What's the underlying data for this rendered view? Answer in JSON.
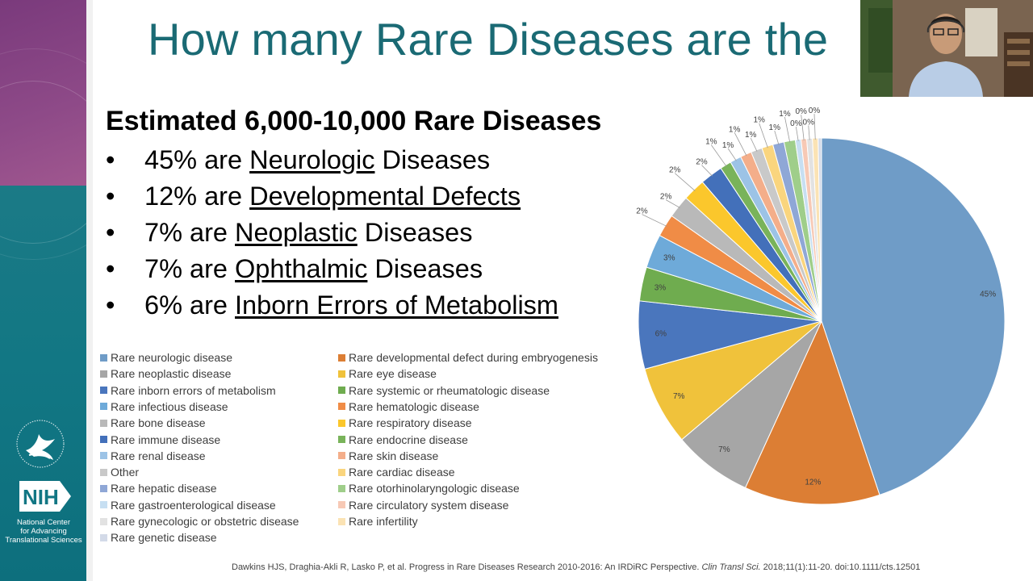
{
  "slide": {
    "title": "How many Rare Diseases are the",
    "headline": "Estimated 6,000-10,000 Rare Diseases",
    "bullets": [
      {
        "marker": "•",
        "pre": "45% are ",
        "link": "Neurologic",
        "post": " Diseases"
      },
      {
        "marker": "•",
        "pre": "12% are ",
        "link": "Developmental Defects",
        "post": ""
      },
      {
        "marker": "•",
        "pre": "7% are ",
        "link": "Neoplastic",
        "post": " Diseases"
      },
      {
        "marker": "•",
        "pre": "7% are ",
        "link": "Ophthalmic",
        "post": " Diseases"
      },
      {
        "marker": "•",
        "pre": "6% are ",
        "link": "Inborn Errors of Metabolism",
        "post": ""
      }
    ],
    "citation": {
      "authors": "Dawkins HJS, Draghia-Akli R, Lasko P, et al. Progress in Rare Diseases Research 2010-2016: An IRDiRC Perspective.",
      "journal": "Clin Transl Sci.",
      "details": "2018;11(1):11-20. doi:10.1111/cts.12501"
    },
    "logos": {
      "hhs": "hhs-eagle-seal-icon",
      "nih": "NIH",
      "nih_caption_1": "National Center",
      "nih_caption_2": "for Advancing",
      "nih_caption_3": "Translational Sciences"
    },
    "colors": {
      "title": "#1a6a74",
      "sidebar_top": "#7a3a7c",
      "sidebar_bottom": "#127784"
    }
  },
  "chart_data": {
    "type": "pie",
    "title": "",
    "start_angle": 0,
    "direction": "clockwise",
    "slices": [
      {
        "label": "Rare neurologic disease",
        "value": 45,
        "color": "#6f9cc7",
        "data_label": "45%"
      },
      {
        "label": "Rare developmental defect during embryogenesis",
        "value": 12,
        "color": "#dc7e34",
        "data_label": "12%"
      },
      {
        "label": "Rare neoplastic disease",
        "value": 7,
        "color": "#a6a6a6",
        "data_label": "7%"
      },
      {
        "label": "Rare eye disease",
        "value": 7,
        "color": "#f0c23b",
        "data_label": "7%"
      },
      {
        "label": "Rare inborn errors of metabolism",
        "value": 6,
        "color": "#4a76bd",
        "data_label": "6%"
      },
      {
        "label": "Rare systemic or rheumatologic disease",
        "value": 3,
        "color": "#6fac4f",
        "data_label": "3%"
      },
      {
        "label": "Rare infectious disease",
        "value": 3,
        "color": "#6eaad9",
        "data_label": "3%"
      },
      {
        "label": "Rare hematologic disease",
        "value": 2,
        "color": "#f08c46",
        "data_label": "2%"
      },
      {
        "label": "Rare bone disease",
        "value": 2,
        "color": "#b9b9b9",
        "data_label": "2%"
      },
      {
        "label": "Rare respiratory disease",
        "value": 2,
        "color": "#fbc72c",
        "data_label": "2%"
      },
      {
        "label": "Rare immune disease",
        "value": 2,
        "color": "#4370ba",
        "data_label": "2%"
      },
      {
        "label": "Rare endocrine disease",
        "value": 1,
        "color": "#79b35a",
        "data_label": "1%"
      },
      {
        "label": "Rare renal disease",
        "value": 1,
        "color": "#9cc3e6",
        "data_label": "1%"
      },
      {
        "label": "Rare skin disease",
        "value": 1,
        "color": "#f4ae8a",
        "data_label": "1%"
      },
      {
        "label": "Other",
        "value": 1,
        "color": "#c9c9c9",
        "data_label": "1%"
      },
      {
        "label": "Rare cardiac disease",
        "value": 1,
        "color": "#fad57e",
        "data_label": "1%"
      },
      {
        "label": "Rare hepatic disease",
        "value": 1,
        "color": "#8fa7d6",
        "data_label": "1%"
      },
      {
        "label": "Rare otorhinolaryngologic disease",
        "value": 1,
        "color": "#9fce8a",
        "data_label": "1%"
      },
      {
        "label": "Rare gastroenterological disease",
        "value": 0.5,
        "color": "#c7dff2",
        "data_label": "0%"
      },
      {
        "label": "Rare circulatory system disease",
        "value": 0.5,
        "color": "#f7c9b5",
        "data_label": "0%"
      },
      {
        "label": "Rare gynecologic or obstetric disease",
        "value": 0.5,
        "color": "#e2e2e2",
        "data_label": "0%"
      },
      {
        "label": "Rare infertility",
        "value": 0.5,
        "color": "#fbe3b4",
        "data_label": "0%"
      },
      {
        "label": "Rare genetic disease",
        "value": 0.3,
        "color": "#d3dae8",
        "data_label": ""
      }
    ],
    "legend_order": [
      [
        "Rare neurologic disease",
        "Rare developmental defect during embryogenesis"
      ],
      [
        "Rare neoplastic disease",
        "Rare eye disease"
      ],
      [
        "Rare inborn errors of metabolism",
        "Rare systemic or rheumatologic disease"
      ],
      [
        "Rare infectious disease",
        "Rare hematologic disease"
      ],
      [
        "Rare bone disease",
        "Rare respiratory disease"
      ],
      [
        "Rare immune disease",
        "Rare endocrine disease"
      ],
      [
        "Rare renal disease",
        "Rare skin disease"
      ],
      [
        "Other",
        "Rare cardiac disease"
      ],
      [
        "Rare hepatic disease",
        "Rare otorhinolaryngologic disease"
      ],
      [
        "Rare gastroenterological disease",
        "Rare circulatory system disease"
      ],
      [
        "Rare gynecologic or obstetric disease",
        "Rare infertility"
      ],
      [
        "Rare genetic disease"
      ]
    ],
    "legend_placement": "bottom-left"
  }
}
